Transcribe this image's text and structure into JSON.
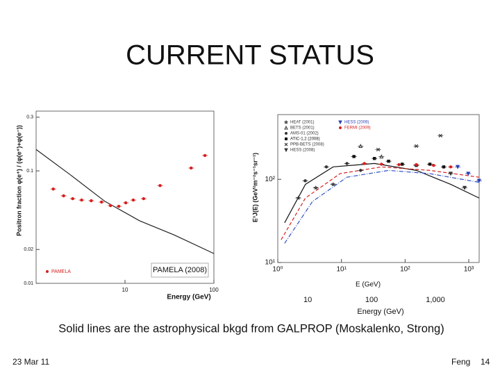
{
  "title": "CURRENT STATUS",
  "caption": "Solid lines are the astrophysical bkgd from GALPROP (Moskalenko, Strong)",
  "footer": {
    "date": "23 Mar 11",
    "author": "Feng",
    "page": "14"
  },
  "chart_data": [
    {
      "type": "scatter",
      "xlabel": "Energy (GeV)",
      "ylabel": "Positron fraction  φ(e⁺) / (φ(e⁺)+φ(e⁻))",
      "annotation": "PAMELA (2008)",
      "xlog": true,
      "ylog": true,
      "xlim": [
        1,
        100
      ],
      "ylim": [
        0.01,
        0.34
      ],
      "xticks": [
        10,
        100
      ],
      "yticks": [
        0.01,
        0.02,
        0.1,
        0.3
      ],
      "series": [
        {
          "name": "PAMELA",
          "color": "#d62020",
          "marker": "circle",
          "x": [
            1.56,
            2.04,
            2.58,
            3.25,
            4.17,
            5.45,
            6.87,
            8.51,
            10.2,
            12.4,
            16.2,
            24.8,
            55.5,
            79.3
          ],
          "values": [
            0.069,
            0.06,
            0.0566,
            0.055,
            0.0543,
            0.0528,
            0.0491,
            0.0484,
            0.052,
            0.055,
            0.0566,
            0.074,
            0.106,
            0.137
          ]
        }
      ],
      "curves": [
        {
          "color": "#222222",
          "style": "solid",
          "x": [
            1,
            2.44,
            5.96,
            14.6,
            35.5,
            100
          ],
          "values": [
            0.155,
            0.092,
            0.0535,
            0.036,
            0.027,
            0.0184
          ]
        }
      ]
    },
    {
      "type": "scatter",
      "xlabel": "E (GeV)",
      "ylabel": "E³J(E)  (GeV²m⁻²s⁻¹sr⁻¹)",
      "xlog": true,
      "ylog": true,
      "xlim": [
        1,
        1456
      ],
      "ylim": [
        10,
        600
      ],
      "xticks": [
        {
          "value": 1,
          "label": "10⁰"
        },
        {
          "value": 10,
          "label": "10¹"
        },
        {
          "value": 100,
          "label": "10²"
        },
        {
          "value": 1000,
          "label": "10³"
        }
      ],
      "yticks": [
        {
          "value": 10,
          "label": "10¹"
        },
        {
          "value": 100,
          "label": "10²"
        }
      ],
      "x2label": "Energy (GeV)",
      "x2lim": [
        3.4,
        4840
      ],
      "x2ticks": [
        10,
        100,
        {
          "value": 1000,
          "label": "1,000"
        }
      ],
      "series": [
        {
          "name": "HEAT (2001)",
          "color": "#333333",
          "marker": "star",
          "x": [
            2.1,
            3.96,
            7.4
          ],
          "values": [
            59.6,
            79,
            87
          ]
        },
        {
          "name": "BETS (2001)",
          "color": "#333333",
          "marker": "triangle",
          "x": [
            20,
            42.5
          ],
          "values": [
            251,
            188
          ]
        },
        {
          "name": "AMS-01 (2002)",
          "color": "#333333",
          "marker": "circle",
          "x": [
            2.7,
            5.8,
            12.2,
            20
          ],
          "values": [
            96,
            141,
            155,
            128
          ]
        },
        {
          "name": "ATIC-1,2 (2008)",
          "color": "#111111",
          "marker": "square",
          "x": [
            15.7,
            33,
            55,
            90,
            150,
            245,
            404
          ],
          "values": [
            188,
            178,
            165,
            152,
            147,
            152,
            141
          ]
        },
        {
          "name": "PPB-BETS (2008)",
          "color": "#333333",
          "marker": "x",
          "x": [
            37.7,
            150,
            359
          ],
          "values": [
            228,
            251,
            335
          ]
        },
        {
          "name": "HESS (2008)",
          "color": "#333333",
          "marker": "triangle-down",
          "x": [
            520,
            860
          ],
          "values": [
            117,
            79
          ]
        },
        {
          "name": "HESS (2009)",
          "color": "#2a3fb0",
          "marker": "triangle-down",
          "x": [
            670,
            980,
            1450
          ],
          "values": [
            141,
            117,
            96
          ]
        },
        {
          "name": "FERMI (2009)",
          "color": "#d62020",
          "marker": "circle",
          "x": [
            22.9,
            42.5,
            80,
            150,
            280,
            520
          ],
          "values": [
            155,
            152,
            150,
            150,
            147,
            141
          ]
        }
      ],
      "curves": [
        {
          "color": "#111111",
          "style": "solid",
          "x": [
            1.28,
            2.72,
            7.4,
            33,
            150,
            520,
            1450
          ],
          "values": [
            30,
            87,
            141,
            155,
            128,
            87,
            59.6
          ]
        },
        {
          "color": "#d62020",
          "style": "dashed",
          "x": [
            1.13,
            2.72,
            9.5,
            42.5,
            245,
            1450
          ],
          "values": [
            18.8,
            59.6,
            117,
            141,
            128,
            106
          ]
        },
        {
          "color": "#3050c0",
          "style": "dashdot",
          "x": [
            1.28,
            3.5,
            12.2,
            55,
            245,
            1450
          ],
          "values": [
            17,
            54,
            106,
            128,
            117,
            92
          ]
        }
      ]
    }
  ]
}
